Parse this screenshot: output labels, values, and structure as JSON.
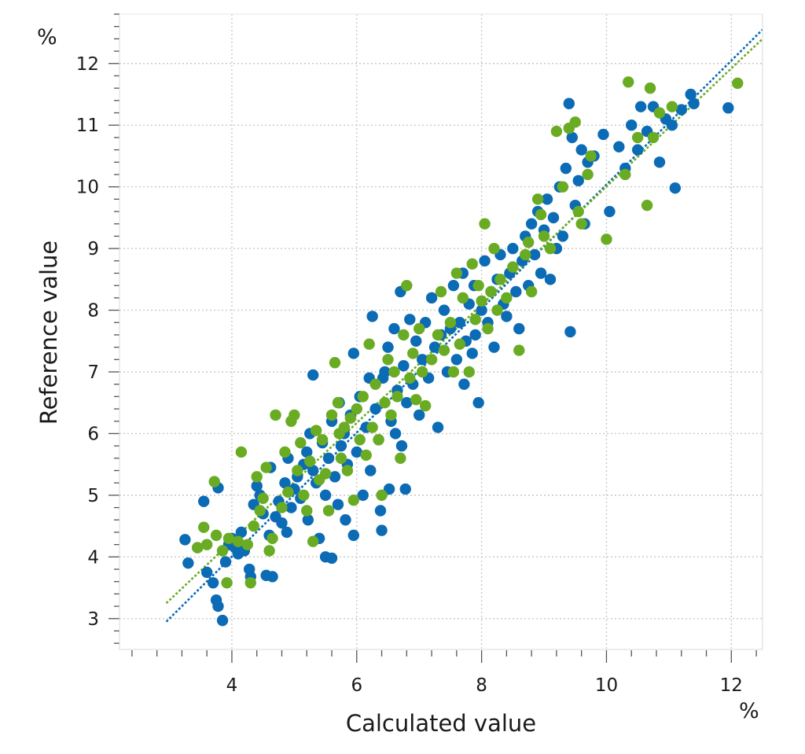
{
  "chart_data": {
    "type": "scatter",
    "xlabel": "Calculated value",
    "ylabel": "Reference value",
    "x_unit": "%",
    "y_unit": "%",
    "xlim": [
      2.2,
      12.5
    ],
    "ylim": [
      2.5,
      12.8
    ],
    "x_ticks": [
      4,
      6,
      8,
      10,
      12
    ],
    "y_ticks": [
      3,
      4,
      5,
      6,
      7,
      8,
      9,
      10,
      11,
      12
    ],
    "grid": true,
    "grid_style": "dotted",
    "legend": "none",
    "colors": {
      "blue": "#0b6bb5",
      "green": "#6aab24",
      "grid": "#c8c8c8",
      "axis": "#555555"
    },
    "series": [
      {
        "color": "#0b6bb5",
        "trendline": {
          "x": [
            2.95,
            12.5
          ],
          "y": [
            2.95,
            12.55
          ]
        },
        "points": [
          [
            3.25,
            4.28
          ],
          [
            3.3,
            3.9
          ],
          [
            3.45,
            4.15
          ],
          [
            3.55,
            4.9
          ],
          [
            3.6,
            3.75
          ],
          [
            3.7,
            3.58
          ],
          [
            3.75,
            3.3
          ],
          [
            3.78,
            3.2
          ],
          [
            3.78,
            5.12
          ],
          [
            3.85,
            2.97
          ],
          [
            3.9,
            3.92
          ],
          [
            3.95,
            4.2
          ],
          [
            4.0,
            4.3
          ],
          [
            4.05,
            4.15
          ],
          [
            4.1,
            4.05
          ],
          [
            4.15,
            4.4
          ],
          [
            4.2,
            4.1
          ],
          [
            4.28,
            3.8
          ],
          [
            4.3,
            3.68
          ],
          [
            4.35,
            4.85
          ],
          [
            4.4,
            5.15
          ],
          [
            4.45,
            5.0
          ],
          [
            4.5,
            4.7
          ],
          [
            4.55,
            3.7
          ],
          [
            4.6,
            4.35
          ],
          [
            4.62,
            5.45
          ],
          [
            4.65,
            3.68
          ],
          [
            4.7,
            4.65
          ],
          [
            4.75,
            4.9
          ],
          [
            4.8,
            4.55
          ],
          [
            4.85,
            5.2
          ],
          [
            4.88,
            4.4
          ],
          [
            4.9,
            5.6
          ],
          [
            4.95,
            4.8
          ],
          [
            5.0,
            5.1
          ],
          [
            5.05,
            5.3
          ],
          [
            5.1,
            4.95
          ],
          [
            5.15,
            5.5
          ],
          [
            5.2,
            5.7
          ],
          [
            5.22,
            4.6
          ],
          [
            5.25,
            6.0
          ],
          [
            5.3,
            5.4
          ],
          [
            5.3,
            6.95
          ],
          [
            5.35,
            5.2
          ],
          [
            5.4,
            4.3
          ],
          [
            5.45,
            5.85
          ],
          [
            5.5,
            5.0
          ],
          [
            5.5,
            4.0
          ],
          [
            5.55,
            5.6
          ],
          [
            5.6,
            3.98
          ],
          [
            5.6,
            6.2
          ],
          [
            5.65,
            5.3
          ],
          [
            5.7,
            4.85
          ],
          [
            5.72,
            6.5
          ],
          [
            5.75,
            5.8
          ],
          [
            5.8,
            6.0
          ],
          [
            5.82,
            4.6
          ],
          [
            5.85,
            5.5
          ],
          [
            5.9,
            6.3
          ],
          [
            5.95,
            4.35
          ],
          [
            5.95,
            7.3
          ],
          [
            6.0,
            5.7
          ],
          [
            6.05,
            6.6
          ],
          [
            6.1,
            5.0
          ],
          [
            6.15,
            6.1
          ],
          [
            6.2,
            6.9
          ],
          [
            6.22,
            5.4
          ],
          [
            6.25,
            7.9
          ],
          [
            6.3,
            6.4
          ],
          [
            6.35,
            5.9
          ],
          [
            6.38,
            4.75
          ],
          [
            6.4,
            4.43
          ],
          [
            6.42,
            6.9
          ],
          [
            6.45,
            7.0
          ],
          [
            6.5,
            7.4
          ],
          [
            6.52,
            5.1
          ],
          [
            6.55,
            6.2
          ],
          [
            6.6,
            7.7
          ],
          [
            6.62,
            6.0
          ],
          [
            6.65,
            6.7
          ],
          [
            6.7,
            8.3
          ],
          [
            6.72,
            5.8
          ],
          [
            6.75,
            7.1
          ],
          [
            6.78,
            5.1
          ],
          [
            6.8,
            6.5
          ],
          [
            6.85,
            7.85
          ],
          [
            6.9,
            6.8
          ],
          [
            6.95,
            7.5
          ],
          [
            7.0,
            6.3
          ],
          [
            7.05,
            7.2
          ],
          [
            7.1,
            7.8
          ],
          [
            7.15,
            6.9
          ],
          [
            7.2,
            8.2
          ],
          [
            7.25,
            7.4
          ],
          [
            7.3,
            6.1
          ],
          [
            7.35,
            7.6
          ],
          [
            7.4,
            8.0
          ],
          [
            7.45,
            7.0
          ],
          [
            7.5,
            7.7
          ],
          [
            7.55,
            8.4
          ],
          [
            7.6,
            7.2
          ],
          [
            7.65,
            7.8
          ],
          [
            7.7,
            8.6
          ],
          [
            7.72,
            6.8
          ],
          [
            7.75,
            7.5
          ],
          [
            7.8,
            8.1
          ],
          [
            7.85,
            7.3
          ],
          [
            7.88,
            8.4
          ],
          [
            7.9,
            7.6
          ],
          [
            7.95,
            6.5
          ],
          [
            8.0,
            8.0
          ],
          [
            8.05,
            8.8
          ],
          [
            8.1,
            7.8
          ],
          [
            8.15,
            8.3
          ],
          [
            8.2,
            7.4
          ],
          [
            8.25,
            8.5
          ],
          [
            8.3,
            8.9
          ],
          [
            8.35,
            8.1
          ],
          [
            8.4,
            7.9
          ],
          [
            8.45,
            8.6
          ],
          [
            8.5,
            9.0
          ],
          [
            8.55,
            8.3
          ],
          [
            8.6,
            7.7
          ],
          [
            8.65,
            8.8
          ],
          [
            8.7,
            9.2
          ],
          [
            8.75,
            8.4
          ],
          [
            8.8,
            9.4
          ],
          [
            8.85,
            8.9
          ],
          [
            8.9,
            9.6
          ],
          [
            8.95,
            8.6
          ],
          [
            9.0,
            9.3
          ],
          [
            9.05,
            9.8
          ],
          [
            9.1,
            8.5
          ],
          [
            9.15,
            9.5
          ],
          [
            9.2,
            9.0
          ],
          [
            9.25,
            10.0
          ],
          [
            9.3,
            9.2
          ],
          [
            9.35,
            10.3
          ],
          [
            9.4,
            11.35
          ],
          [
            9.42,
            7.65
          ],
          [
            9.45,
            10.8
          ],
          [
            9.5,
            9.7
          ],
          [
            9.55,
            10.1
          ],
          [
            9.6,
            10.6
          ],
          [
            9.65,
            9.4
          ],
          [
            9.7,
            10.4
          ],
          [
            9.8,
            10.5
          ],
          [
            9.95,
            10.85
          ],
          [
            10.05,
            9.6
          ],
          [
            10.2,
            10.65
          ],
          [
            10.3,
            10.3
          ],
          [
            10.4,
            11.0
          ],
          [
            10.5,
            10.6
          ],
          [
            10.55,
            11.3
          ],
          [
            10.65,
            10.9
          ],
          [
            10.75,
            11.3
          ],
          [
            10.85,
            10.4
          ],
          [
            10.95,
            11.1
          ],
          [
            11.05,
            11.0
          ],
          [
            11.1,
            9.98
          ],
          [
            11.2,
            11.25
          ],
          [
            11.35,
            11.5
          ],
          [
            11.4,
            11.35
          ],
          [
            11.95,
            11.28
          ]
        ]
      },
      {
        "color": "#6aab24",
        "trendline": {
          "x": [
            2.95,
            12.5
          ],
          "y": [
            3.25,
            12.4
          ]
        },
        "points": [
          [
            3.45,
            4.15
          ],
          [
            3.55,
            4.48
          ],
          [
            3.6,
            4.2
          ],
          [
            3.72,
            5.22
          ],
          [
            3.75,
            4.35
          ],
          [
            3.85,
            4.1
          ],
          [
            3.92,
            3.58
          ],
          [
            3.95,
            4.3
          ],
          [
            4.1,
            4.25
          ],
          [
            4.15,
            5.7
          ],
          [
            4.25,
            4.2
          ],
          [
            4.3,
            3.58
          ],
          [
            4.35,
            4.5
          ],
          [
            4.4,
            5.3
          ],
          [
            4.45,
            4.75
          ],
          [
            4.5,
            4.95
          ],
          [
            4.55,
            5.45
          ],
          [
            4.6,
            4.1
          ],
          [
            4.65,
            4.3
          ],
          [
            4.7,
            6.3
          ],
          [
            4.8,
            4.8
          ],
          [
            4.85,
            5.7
          ],
          [
            4.9,
            5.05
          ],
          [
            4.95,
            6.2
          ],
          [
            5.0,
            6.3
          ],
          [
            5.05,
            5.4
          ],
          [
            5.1,
            5.85
          ],
          [
            5.15,
            5.0
          ],
          [
            5.2,
            4.75
          ],
          [
            5.25,
            5.55
          ],
          [
            5.3,
            4.25
          ],
          [
            5.35,
            6.05
          ],
          [
            5.4,
            5.25
          ],
          [
            5.45,
            5.9
          ],
          [
            5.5,
            5.35
          ],
          [
            5.55,
            4.75
          ],
          [
            5.6,
            6.3
          ],
          [
            5.65,
            7.15
          ],
          [
            5.7,
            6.5
          ],
          [
            5.72,
            6.0
          ],
          [
            5.75,
            5.6
          ],
          [
            5.8,
            6.1
          ],
          [
            5.85,
            5.4
          ],
          [
            5.9,
            6.25
          ],
          [
            5.95,
            4.92
          ],
          [
            6.0,
            6.4
          ],
          [
            6.05,
            5.9
          ],
          [
            6.1,
            6.6
          ],
          [
            6.15,
            5.65
          ],
          [
            6.2,
            7.45
          ],
          [
            6.25,
            6.1
          ],
          [
            6.3,
            6.8
          ],
          [
            6.35,
            5.9
          ],
          [
            6.4,
            5.0
          ],
          [
            6.45,
            6.5
          ],
          [
            6.5,
            7.2
          ],
          [
            6.55,
            6.3
          ],
          [
            6.6,
            7.0
          ],
          [
            6.65,
            6.6
          ],
          [
            6.7,
            5.6
          ],
          [
            6.75,
            7.6
          ],
          [
            6.8,
            8.4
          ],
          [
            6.85,
            6.9
          ],
          [
            6.9,
            7.3
          ],
          [
            6.95,
            6.55
          ],
          [
            7.0,
            7.7
          ],
          [
            7.05,
            7.0
          ],
          [
            7.1,
            6.45
          ],
          [
            7.2,
            7.2
          ],
          [
            7.3,
            7.6
          ],
          [
            7.35,
            8.3
          ],
          [
            7.4,
            7.35
          ],
          [
            7.5,
            7.8
          ],
          [
            7.55,
            7.0
          ],
          [
            7.6,
            8.6
          ],
          [
            7.65,
            7.45
          ],
          [
            7.7,
            8.2
          ],
          [
            7.8,
            7.0
          ],
          [
            7.85,
            8.75
          ],
          [
            7.9,
            7.85
          ],
          [
            7.95,
            8.4
          ],
          [
            8.0,
            8.15
          ],
          [
            8.05,
            9.4
          ],
          [
            8.1,
            7.7
          ],
          [
            8.15,
            8.3
          ],
          [
            8.2,
            9.0
          ],
          [
            8.25,
            8.0
          ],
          [
            8.3,
            8.5
          ],
          [
            8.4,
            8.2
          ],
          [
            8.5,
            8.7
          ],
          [
            8.6,
            7.35
          ],
          [
            8.7,
            8.9
          ],
          [
            8.75,
            9.1
          ],
          [
            8.8,
            8.3
          ],
          [
            8.9,
            9.8
          ],
          [
            8.95,
            9.55
          ],
          [
            9.0,
            9.2
          ],
          [
            9.1,
            9.0
          ],
          [
            9.2,
            10.9
          ],
          [
            9.3,
            10.0
          ],
          [
            9.4,
            10.95
          ],
          [
            9.5,
            11.05
          ],
          [
            9.55,
            9.6
          ],
          [
            9.6,
            9.4
          ],
          [
            9.7,
            10.2
          ],
          [
            9.75,
            10.5
          ],
          [
            10.0,
            9.15
          ],
          [
            10.3,
            10.2
          ],
          [
            10.35,
            11.7
          ],
          [
            10.5,
            10.8
          ],
          [
            10.65,
            9.7
          ],
          [
            10.7,
            11.6
          ],
          [
            10.75,
            10.8
          ],
          [
            10.85,
            11.2
          ],
          [
            11.05,
            11.3
          ],
          [
            12.1,
            11.68
          ]
        ]
      }
    ]
  }
}
